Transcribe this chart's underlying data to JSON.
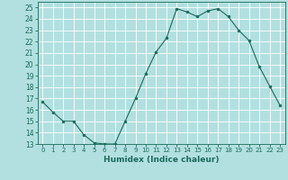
{
  "x": [
    0,
    1,
    2,
    3,
    4,
    5,
    6,
    7,
    8,
    9,
    10,
    11,
    12,
    13,
    14,
    15,
    16,
    17,
    18,
    19,
    20,
    21,
    22,
    23
  ],
  "y": [
    16.7,
    15.8,
    15.0,
    15.0,
    13.8,
    13.1,
    13.0,
    13.0,
    15.0,
    17.0,
    19.2,
    21.1,
    22.3,
    24.9,
    24.6,
    24.2,
    24.7,
    24.9,
    24.2,
    23.0,
    22.1,
    19.8,
    18.1,
    16.4
  ],
  "line_color": "#1a6b5a",
  "marker": "o",
  "marker_size": 2.0,
  "bg_color": "#b2e0e0",
  "grid_color": "#ffffff",
  "xlabel": "Humidex (Indice chaleur)",
  "xlim": [
    -0.5,
    23.5
  ],
  "ylim": [
    13,
    25.5
  ],
  "yticks": [
    13,
    14,
    15,
    16,
    17,
    18,
    19,
    20,
    21,
    22,
    23,
    24,
    25
  ],
  "xtick_labels": [
    "0",
    "1",
    "2",
    "3",
    "4",
    "5",
    "6",
    "7",
    "8",
    "9",
    "10",
    "11",
    "12",
    "13",
    "14",
    "15",
    "16",
    "17",
    "18",
    "19",
    "20",
    "21",
    "22",
    "23"
  ],
  "tick_color": "#1a6b5a",
  "label_color": "#1a6b5a",
  "spine_color": "#1a6b5a"
}
